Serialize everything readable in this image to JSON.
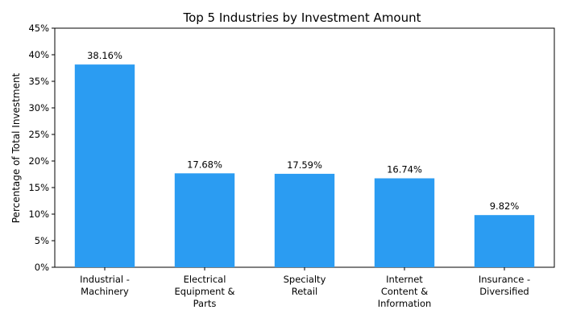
{
  "chart_data": {
    "type": "bar",
    "title": "Top 5 Industries by Investment Amount",
    "xlabel": "",
    "ylabel": "Percentage of Total Investment",
    "categories": [
      [
        "Industrial -",
        "Machinery"
      ],
      [
        "Electrical",
        "Equipment &",
        "Parts"
      ],
      [
        "Specialty",
        "Retail"
      ],
      [
        "Internet",
        "Content &",
        "Information"
      ],
      [
        "Insurance -",
        "Diversified"
      ]
    ],
    "values": [
      38.16,
      17.68,
      17.59,
      16.74,
      9.82
    ],
    "data_labels": [
      "38.16%",
      "17.68%",
      "17.59%",
      "16.74%",
      "9.82%"
    ],
    "ylim": [
      0,
      45
    ],
    "yticks": [
      0,
      5,
      10,
      15,
      20,
      25,
      30,
      35,
      40,
      45
    ],
    "ytick_labels": [
      "0%",
      "5%",
      "10%",
      "15%",
      "20%",
      "25%",
      "30%",
      "35%",
      "40%",
      "45%"
    ],
    "grid": false,
    "bar_color": "#2b9cf2"
  }
}
